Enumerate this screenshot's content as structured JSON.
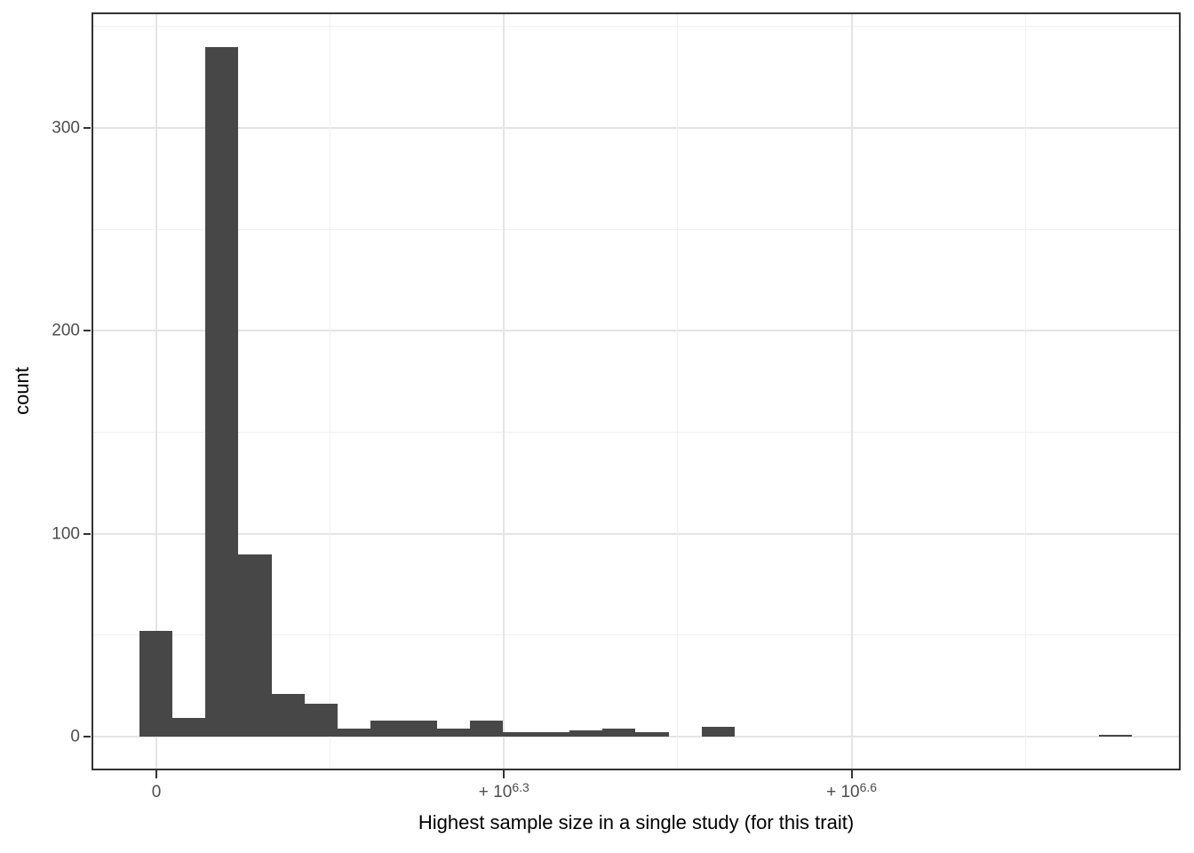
{
  "chart_data": {
    "type": "histogram",
    "title": "",
    "xlabel": "Highest sample size in a single study (for this trait)",
    "ylabel": "count",
    "bin_counts": [
      52,
      9,
      340,
      90,
      21,
      16,
      4,
      8,
      8,
      4,
      8,
      2,
      2,
      3,
      4,
      2,
      0,
      5,
      0,
      0,
      0,
      0,
      0,
      0,
      0,
      0,
      0,
      0,
      0,
      1
    ],
    "n_bins": 30,
    "y_ticks": [
      0,
      100,
      200,
      300
    ],
    "y_minor_ticks": [
      50,
      150,
      250,
      350
    ],
    "ylim": [
      0,
      357
    ],
    "x_ticks": [
      {
        "base": "0",
        "sup": ""
      },
      {
        "base": "+ 10",
        "sup": "6.3"
      },
      {
        "base": "+ 10",
        "sup": "6.6"
      }
    ],
    "legend": false,
    "grid": true,
    "colors": {
      "bar_fill": "#474747",
      "grid_major": "#e4e4e4",
      "grid_minor": "#f0f0f0",
      "panel_border": "#333333",
      "tick_mark": "#333333",
      "tick_label": "#4d4d4d",
      "axis_title": "#000000",
      "background": "#ffffff"
    }
  }
}
